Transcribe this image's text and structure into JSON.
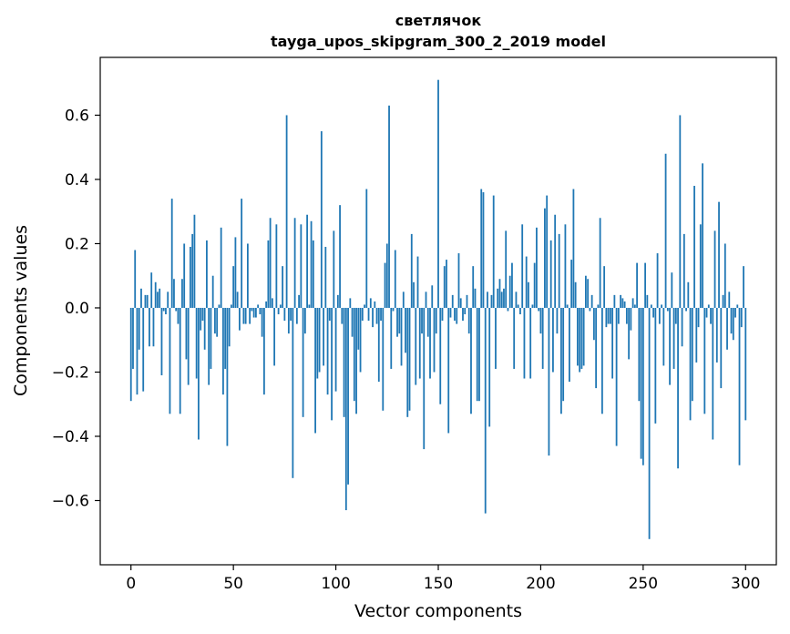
{
  "chart_data": {
    "type": "bar",
    "title": "светлячок",
    "subtitle": "tayga_upos_skipgram_300_2_2019 model",
    "xlabel": "Vector components",
    "ylabel": "Components values",
    "xlim": [
      -15,
      315
    ],
    "ylim": [
      -0.8,
      0.78
    ],
    "xticks": [
      0,
      50,
      100,
      150,
      200,
      250,
      300
    ],
    "xtick_labels": [
      "0",
      "50",
      "100",
      "150",
      "200",
      "250",
      "300"
    ],
    "yticks": [
      -0.6,
      -0.4,
      -0.2,
      0.0,
      0.2,
      0.4,
      0.6
    ],
    "ytick_labels": [
      "−0.6",
      "−0.4",
      "−0.2",
      "0.0",
      "0.2",
      "0.4",
      "0.6"
    ],
    "grid": false,
    "bar_color": "#1f77b4",
    "x_start": 0,
    "values": [
      -0.29,
      -0.19,
      0.18,
      -0.27,
      -0.13,
      0.06,
      -0.26,
      0.04,
      0.04,
      -0.12,
      0.11,
      -0.12,
      0.08,
      0.05,
      0.06,
      -0.21,
      -0.01,
      -0.02,
      0.05,
      -0.33,
      0.34,
      0.09,
      -0.01,
      -0.05,
      -0.33,
      0.09,
      0.2,
      -0.16,
      -0.24,
      0.19,
      0.23,
      0.29,
      -0.22,
      -0.41,
      -0.07,
      -0.04,
      -0.13,
      0.21,
      -0.24,
      -0.19,
      0.1,
      -0.08,
      -0.09,
      0.01,
      0.25,
      -0.27,
      -0.19,
      -0.43,
      -0.12,
      0.01,
      0.13,
      0.22,
      0.05,
      -0.07,
      0.34,
      -0.05,
      -0.05,
      0.2,
      -0.05,
      -0.01,
      -0.03,
      -0.03,
      0.01,
      -0.02,
      -0.09,
      -0.27,
      0.02,
      0.21,
      0.28,
      0.03,
      -0.18,
      0.26,
      -0.02,
      0.01,
      0.13,
      -0.04,
      0.6,
      -0.08,
      -0.04,
      -0.53,
      0.28,
      -0.05,
      0.04,
      0.26,
      -0.34,
      -0.08,
      0.29,
      0.01,
      0.27,
      0.21,
      -0.39,
      -0.22,
      -0.2,
      0.55,
      -0.18,
      0.19,
      -0.27,
      -0.04,
      -0.35,
      0.24,
      -0.26,
      0.04,
      0.32,
      -0.05,
      -0.34,
      -0.63,
      -0.55,
      0.03,
      -0.09,
      -0.29,
      -0.33,
      -0.13,
      -0.2,
      -0.04,
      0.01,
      0.37,
      -0.04,
      0.03,
      -0.06,
      0.02,
      -0.05,
      -0.23,
      -0.04,
      -0.32,
      0.14,
      0.2,
      0.63,
      -0.19,
      -0.01,
      0.18,
      -0.09,
      -0.08,
      -0.18,
      0.05,
      -0.14,
      -0.34,
      -0.32,
      0.23,
      0.08,
      -0.24,
      0.16,
      -0.22,
      -0.08,
      -0.44,
      0.05,
      -0.09,
      -0.22,
      0.07,
      -0.2,
      -0.08,
      0.71,
      -0.3,
      -0.04,
      0.13,
      0.15,
      -0.39,
      -0.03,
      0.04,
      -0.04,
      -0.05,
      0.17,
      0.03,
      -0.04,
      -0.02,
      0.04,
      -0.08,
      -0.33,
      0.13,
      0.06,
      -0.29,
      -0.29,
      0.37,
      0.36,
      -0.64,
      0.05,
      -0.37,
      0.04,
      0.35,
      -0.19,
      0.06,
      0.09,
      0.05,
      0.06,
      0.24,
      -0.01,
      0.1,
      0.14,
      -0.19,
      0.05,
      0.01,
      -0.02,
      0.26,
      -0.22,
      0.16,
      0.08,
      -0.22,
      0.01,
      0.14,
      0.25,
      -0.01,
      -0.08,
      -0.19,
      0.31,
      0.35,
      -0.46,
      0.21,
      -0.2,
      0.29,
      -0.08,
      0.23,
      -0.33,
      -0.29,
      0.26,
      0.01,
      -0.23,
      0.15,
      0.37,
      0.08,
      -0.18,
      -0.2,
      -0.19,
      -0.18,
      0.1,
      0.09,
      -0.01,
      0.04,
      -0.1,
      -0.25,
      0.01,
      0.28,
      -0.33,
      0.13,
      -0.06,
      -0.05,
      -0.05,
      -0.22,
      0.04,
      -0.43,
      -0.05,
      0.04,
      0.03,
      0.02,
      -0.05,
      -0.16,
      -0.07,
      0.03,
      0.01,
      0.14,
      -0.29,
      -0.47,
      -0.49,
      0.14,
      0.04,
      -0.72,
      0.01,
      -0.03,
      -0.36,
      0.17,
      -0.05,
      0.01,
      -0.18,
      0.48,
      -0.01,
      -0.24,
      0.11,
      -0.19,
      -0.05,
      -0.5,
      0.6,
      -0.12,
      0.23,
      -0.01,
      0.08,
      -0.35,
      -0.29,
      0.38,
      -0.17,
      -0.06,
      0.26,
      0.45,
      -0.33,
      -0.03,
      0.01,
      -0.05,
      -0.41,
      0.24,
      -0.17,
      0.33,
      -0.25,
      0.04,
      0.2,
      -0.13,
      0.05,
      -0.08,
      -0.1,
      -0.03,
      0.01,
      -0.49,
      -0.06,
      0.13,
      -0.35
    ]
  }
}
